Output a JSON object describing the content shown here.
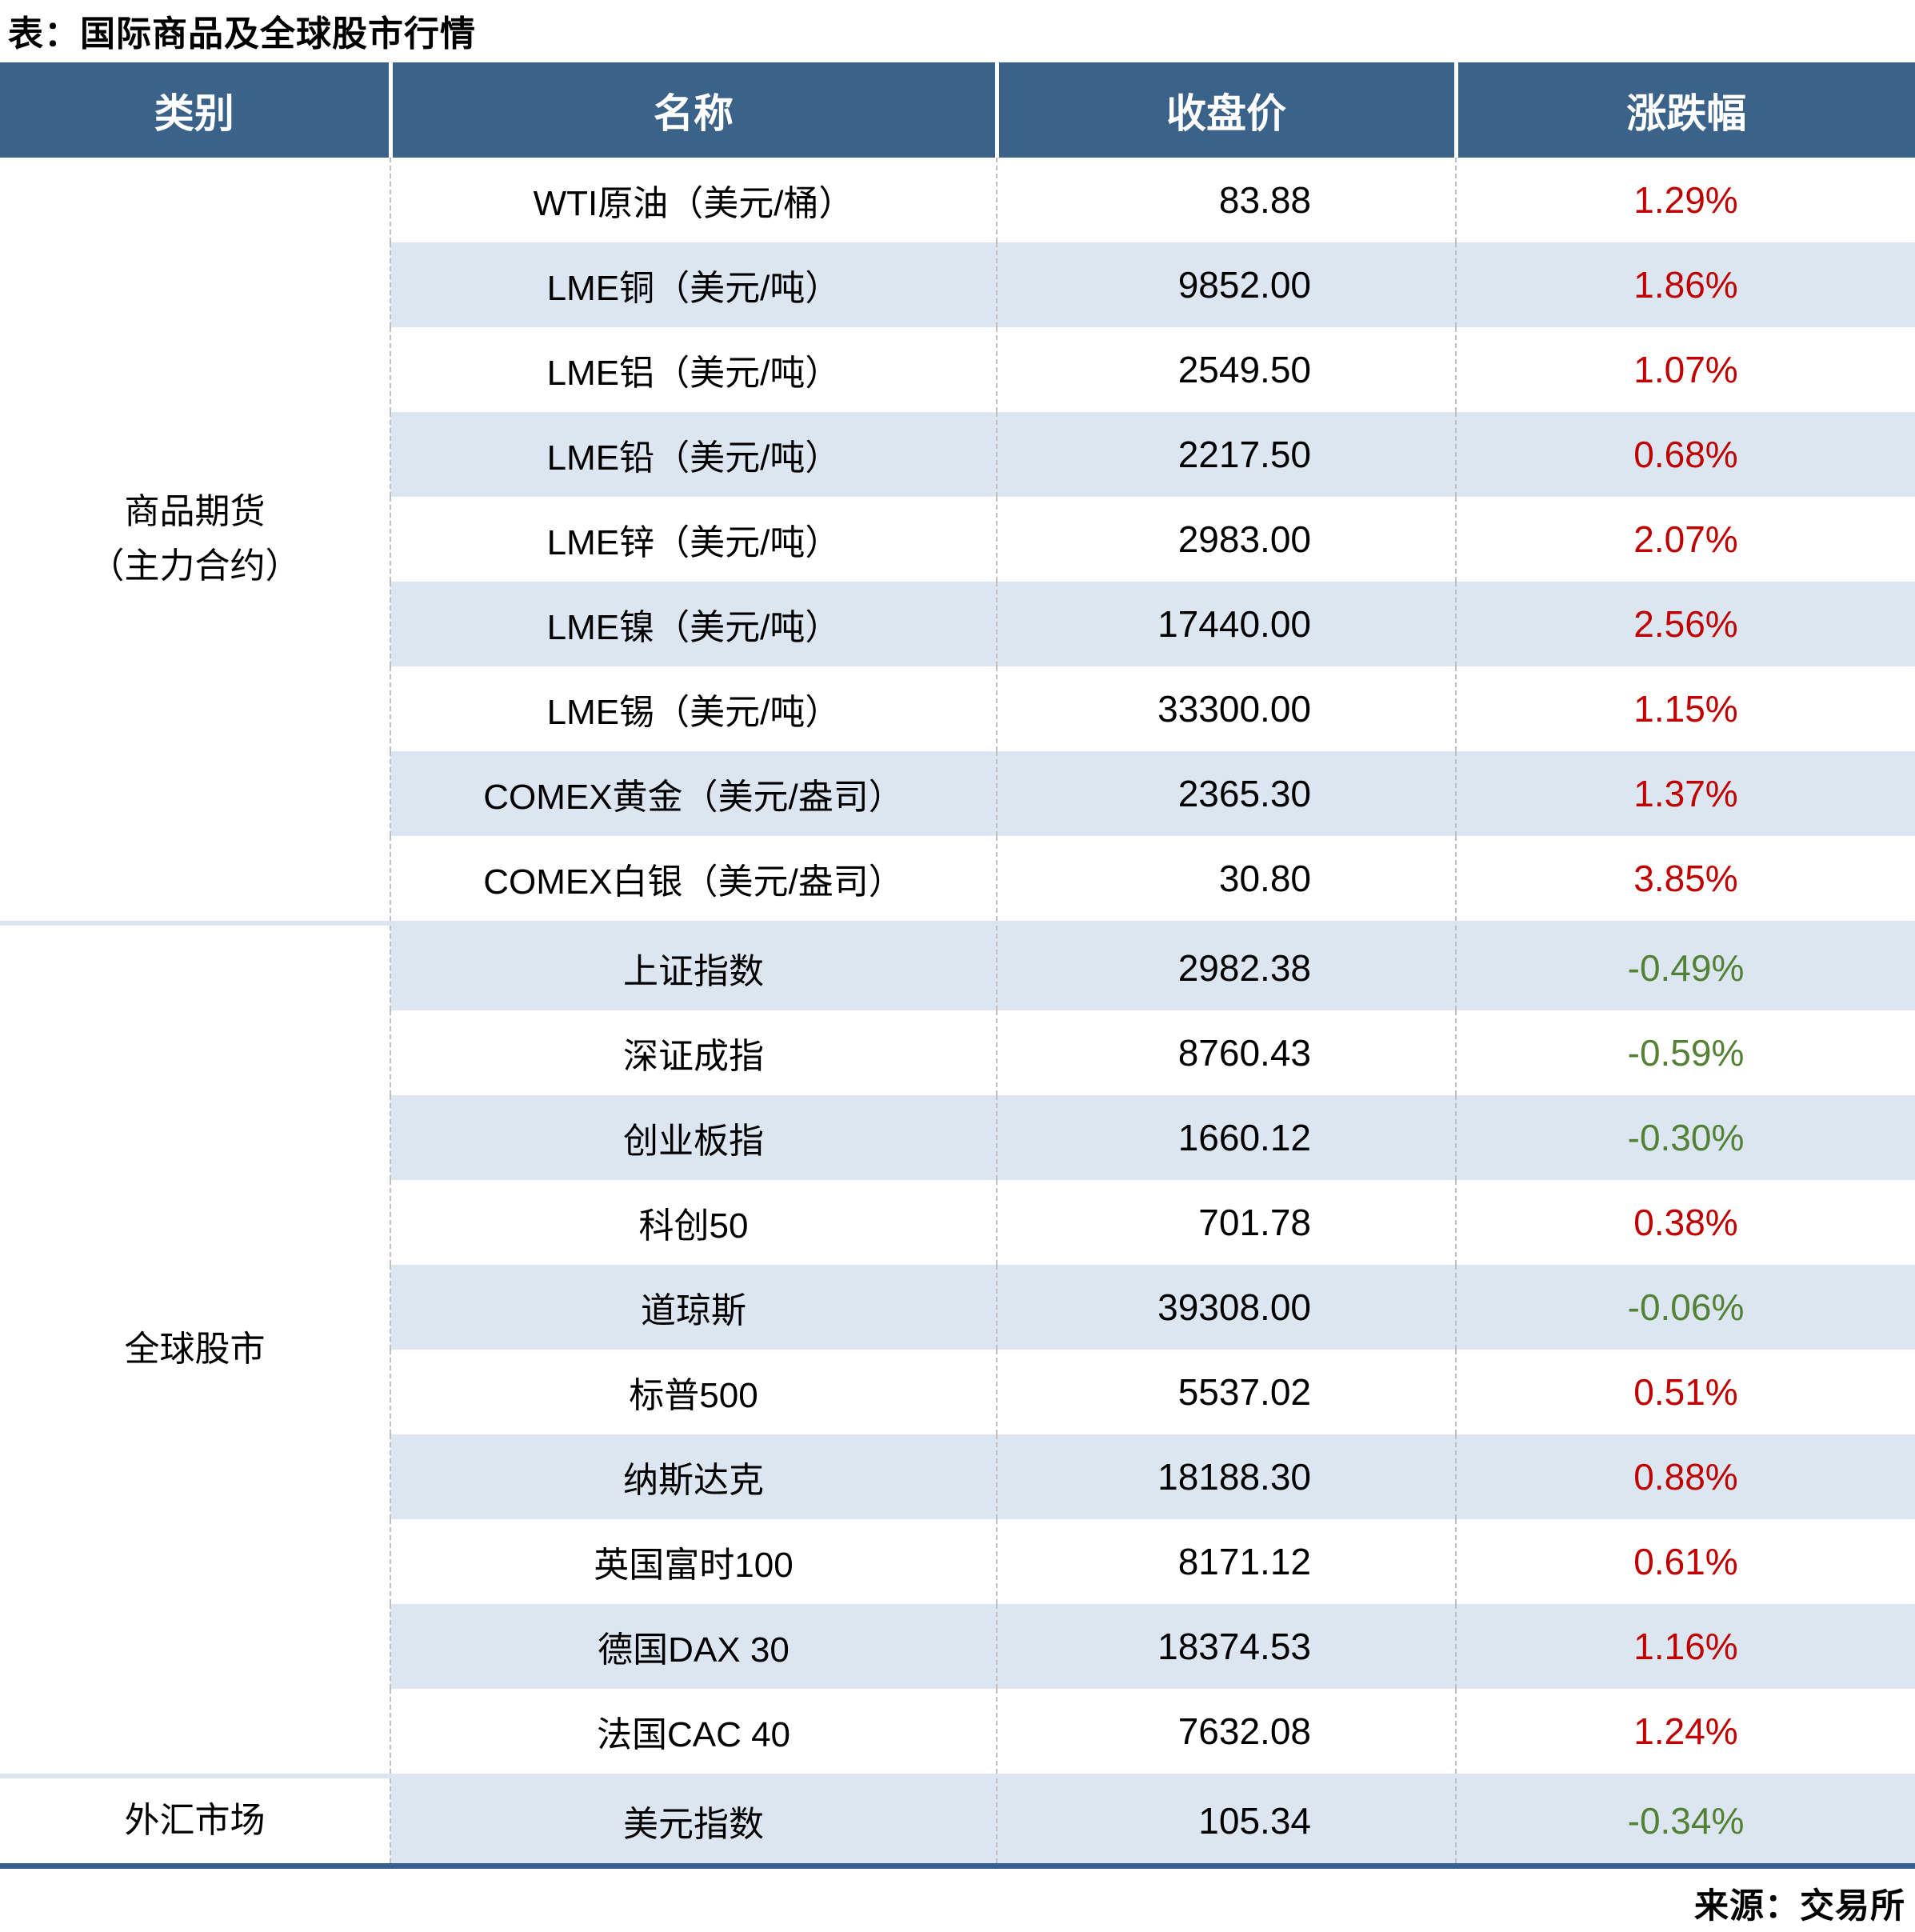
{
  "title": "表：国际商品及全球股市行情",
  "source": "来源：交易所",
  "colors": {
    "header_bg": "#3B6288",
    "alt_row_bg": "#DCE6F1",
    "positive_change": "#C00000",
    "negative_change": "#538135",
    "bottom_bar": "#366092",
    "column_divider": "#BFBFBF"
  },
  "table": {
    "headers": [
      "类别",
      "名称",
      "收盘价",
      "涨跌幅"
    ],
    "sections": [
      {
        "category": "商品期货\n（主力合约）",
        "rows": [
          {
            "name": "WTI原油（美元/桶）",
            "close": "83.88",
            "change": "1.29%"
          },
          {
            "name": "LME铜（美元/吨）",
            "close": "9852.00",
            "change": "1.86%"
          },
          {
            "name": "LME铝（美元/吨）",
            "close": "2549.50",
            "change": "1.07%"
          },
          {
            "name": "LME铅（美元/吨）",
            "close": "2217.50",
            "change": "0.68%"
          },
          {
            "name": "LME锌（美元/吨）",
            "close": "2983.00",
            "change": "2.07%"
          },
          {
            "name": "LME镍（美元/吨）",
            "close": "17440.00",
            "change": "2.56%"
          },
          {
            "name": "LME锡（美元/吨）",
            "close": "33300.00",
            "change": "1.15%"
          },
          {
            "name": "COMEX黄金（美元/盎司）",
            "close": "2365.30",
            "change": "1.37%"
          },
          {
            "name": "COMEX白银（美元/盎司）",
            "close": "30.80",
            "change": "3.85%"
          }
        ]
      },
      {
        "category": "全球股市",
        "rows": [
          {
            "name": "上证指数",
            "close": "2982.38",
            "change": "-0.49%"
          },
          {
            "name": "深证成指",
            "close": "8760.43",
            "change": "-0.59%"
          },
          {
            "name": "创业板指",
            "close": "1660.12",
            "change": "-0.30%"
          },
          {
            "name": "科创50",
            "close": "701.78",
            "change": "0.38%"
          },
          {
            "name": "道琼斯",
            "close": "39308.00",
            "change": "-0.06%"
          },
          {
            "name": "标普500",
            "close": "5537.02",
            "change": "0.51%"
          },
          {
            "name": "纳斯达克",
            "close": "18188.30",
            "change": "0.88%"
          },
          {
            "name": "英国富时100",
            "close": "8171.12",
            "change": "0.61%"
          },
          {
            "name": "德国DAX 30",
            "close": "18374.53",
            "change": "1.16%"
          },
          {
            "name": "法国CAC 40",
            "close": "7632.08",
            "change": "1.24%"
          }
        ]
      },
      {
        "category": "外汇市场",
        "rows": [
          {
            "name": "美元指数",
            "close": "105.34",
            "change": "-0.34%"
          }
        ]
      }
    ]
  }
}
